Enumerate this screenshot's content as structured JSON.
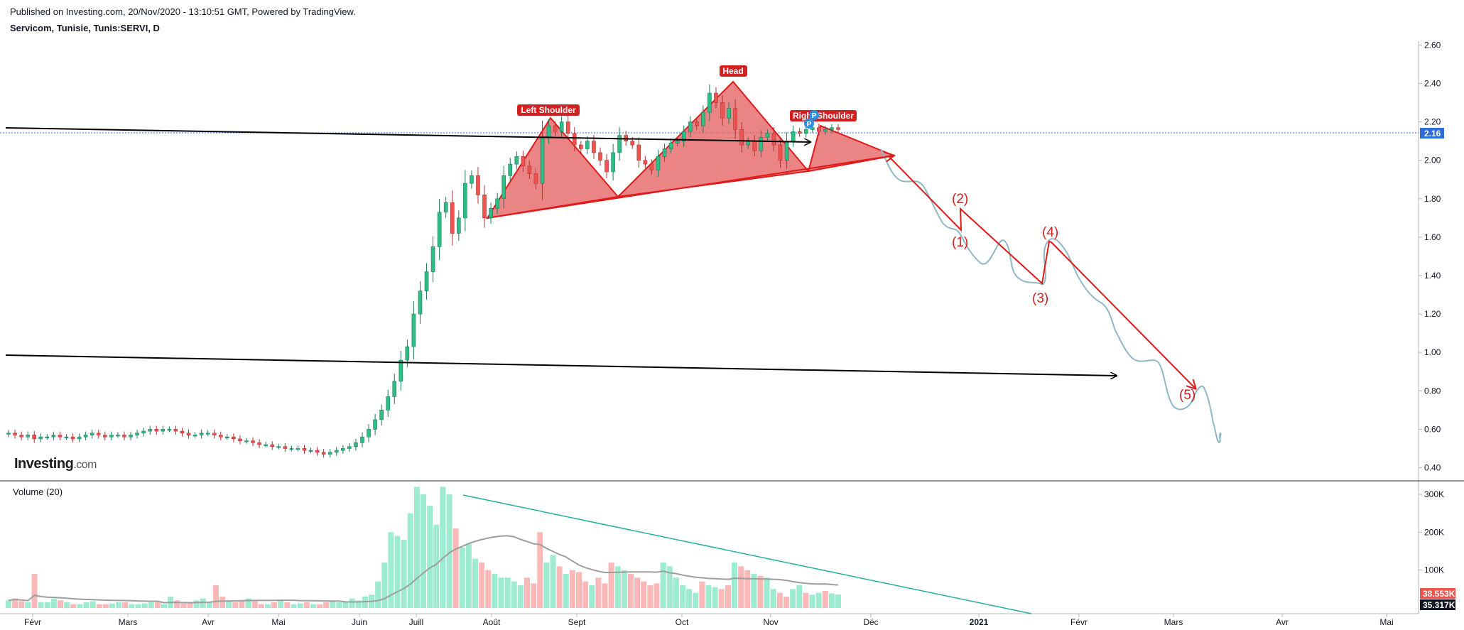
{
  "header": {
    "published": "Published on Investing.com, 20/Nov/2020 - 13:10:51 GMT, Powered by TradingView.",
    "symbol": "Servicom, Tunisie, Tunis:SERVI, D"
  },
  "logo": {
    "brand": "Investing",
    "suffix": ".com"
  },
  "colors": {
    "up": "#26a69a",
    "up_fill": "#2ebd85",
    "down": "#ef5350",
    "pattern_fill": "#e45b5b",
    "pattern_line": "#e01a1a",
    "wave": "#8fb8c6",
    "trend_teal": "#22b09a",
    "price_tag": "#2f6bd8",
    "vol_up": "#9debd1",
    "vol_down": "#fbb8b8",
    "ma": "#9e9e9e"
  },
  "chart_data": [
    {
      "type": "candlestick",
      "title": "Servicom, Tunisie, Tunis:SERVI, D",
      "y_ticks": [
        "2.60",
        "2.40",
        "2.20",
        "2.00",
        "1.80",
        "1.60",
        "1.40",
        "1.20",
        "1.00",
        "0.80",
        "0.60",
        "0.40"
      ],
      "ylim": [
        0.35,
        2.62
      ],
      "x_ticks": [
        "Févr",
        "Mars",
        "Avr",
        "Mai",
        "Juin",
        "Juill",
        "Août",
        "Sept",
        "Oct",
        "Nov",
        "Déc",
        "2021",
        "Févr",
        "Mars",
        "Avr",
        "Mai"
      ],
      "last_price": "2.16",
      "closes": [
        0.58,
        0.57,
        0.56,
        0.57,
        0.55,
        0.56,
        0.56,
        0.57,
        0.56,
        0.56,
        0.55,
        0.56,
        0.57,
        0.58,
        0.57,
        0.56,
        0.57,
        0.57,
        0.56,
        0.57,
        0.58,
        0.59,
        0.6,
        0.59,
        0.6,
        0.6,
        0.59,
        0.58,
        0.57,
        0.57,
        0.58,
        0.58,
        0.57,
        0.56,
        0.56,
        0.55,
        0.54,
        0.54,
        0.53,
        0.52,
        0.52,
        0.51,
        0.51,
        0.5,
        0.5,
        0.5,
        0.49,
        0.49,
        0.48,
        0.47,
        0.48,
        0.49,
        0.5,
        0.51,
        0.53,
        0.56,
        0.6,
        0.65,
        0.7,
        0.77,
        0.85,
        0.96,
        1.03,
        1.2,
        1.32,
        1.42,
        1.55,
        1.73,
        1.78,
        1.62,
        1.7,
        1.88,
        1.92,
        1.82,
        1.7,
        1.75,
        1.8,
        1.92,
        1.98,
        2.02,
        1.97,
        1.93,
        1.88,
        2.12,
        2.18,
        2.15,
        2.2,
        2.14,
        2.08,
        2.06,
        2.1,
        2.04,
        2.0,
        1.94,
        2.04,
        2.13,
        2.1,
        2.08,
        2.0,
        1.98,
        1.95,
        2.02,
        2.06,
        2.09,
        2.1,
        2.15,
        2.2,
        2.18,
        2.25,
        2.35,
        2.3,
        2.22,
        2.27,
        2.16,
        2.08,
        2.1,
        2.05,
        2.12,
        2.14,
        2.08,
        2.0,
        2.1,
        2.15,
        2.14,
        2.16,
        2.17,
        2.15,
        2.16,
        2.17,
        2.16
      ],
      "annotations": [
        "Left Shoulder",
        "Head",
        "Right Shoulder",
        "(1)",
        "(2)",
        "(3)",
        "(4)",
        "(5)"
      ]
    },
    {
      "type": "bar",
      "title": "Volume (20)",
      "y_ticks": [
        "300K",
        "200K",
        "100K"
      ],
      "ylim": [
        0,
        330000
      ],
      "last_values": [
        "38.553K",
        "35.317K"
      ],
      "values_k": [
        20,
        25,
        18,
        15,
        90,
        15,
        15,
        25,
        20,
        15,
        10,
        10,
        15,
        18,
        10,
        10,
        12,
        15,
        15,
        10,
        10,
        12,
        15,
        15,
        10,
        30,
        20,
        12,
        15,
        20,
        25,
        15,
        60,
        30,
        20,
        15,
        20,
        25,
        20,
        10,
        10,
        15,
        20,
        15,
        10,
        12,
        15,
        10,
        10,
        15,
        20,
        15,
        15,
        25,
        20,
        30,
        35,
        70,
        120,
        200,
        190,
        180,
        250,
        320,
        300,
        270,
        220,
        320,
        300,
        210,
        160,
        170,
        130,
        120,
        100,
        90,
        80,
        80,
        70,
        60,
        80,
        65,
        200,
        120,
        140,
        110,
        90,
        100,
        95,
        70,
        60,
        80,
        65,
        120,
        110,
        100,
        90,
        80,
        70,
        60,
        65,
        120,
        110,
        80,
        60,
        50,
        40,
        70,
        60,
        55,
        50,
        60,
        120,
        110,
        100,
        90,
        85,
        80,
        50,
        40,
        30,
        50,
        60,
        40,
        35,
        40,
        45,
        38.5,
        35.3
      ]
    }
  ]
}
